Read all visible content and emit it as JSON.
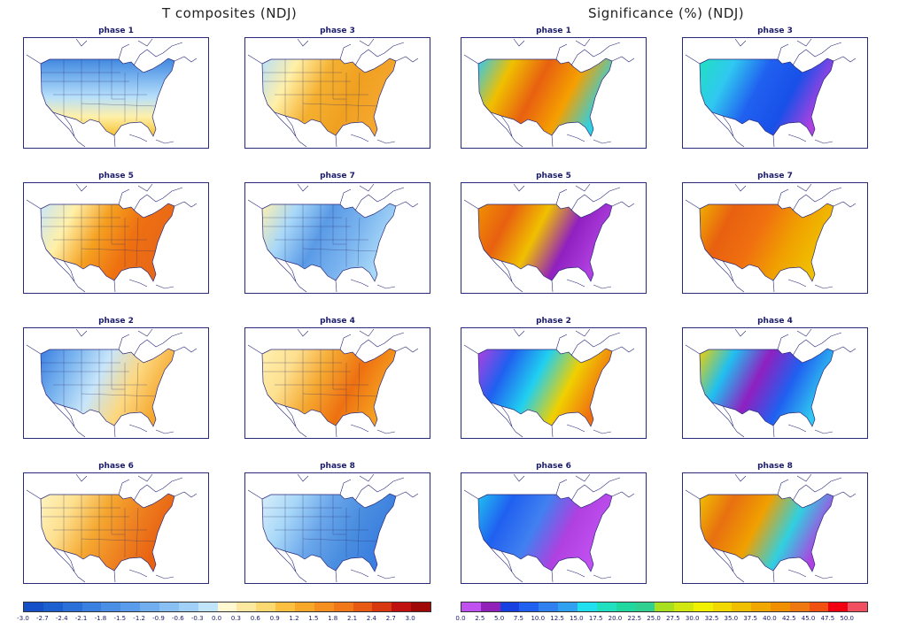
{
  "titles": {
    "left": "T composites (NDJ)",
    "right": "Significance (%) (NDJ)"
  },
  "panels": [
    {
      "group": "temperature",
      "title": "phase 1",
      "dir": "v",
      "colors": [
        "#3f86de",
        "#7ab4ef",
        "#b8e0fa",
        "#fff0a8",
        "#f5c030"
      ]
    },
    {
      "group": "temperature",
      "title": "phase 5",
      "dir": "h",
      "colors": [
        "#c8e6fa",
        "#fff0a8",
        "#f5a020",
        "#ee7010",
        "#e86818"
      ]
    },
    {
      "group": "temperature",
      "title": "phase 2",
      "dir": "h",
      "colors": [
        "#3a7ee0",
        "#7ab4ef",
        "#c8e6fa",
        "#fdd880",
        "#f5a830"
      ]
    },
    {
      "group": "temperature",
      "title": "phase 6",
      "dir": "h",
      "colors": [
        "#fff4c0",
        "#fde090",
        "#f5a830",
        "#ee8020",
        "#e86010"
      ]
    },
    {
      "group": "temperature",
      "title": "phase 3",
      "dir": "h",
      "colors": [
        "#b8e0fa",
        "#fff0a8",
        "#f5b030",
        "#f0a020",
        "#f5a830"
      ]
    },
    {
      "group": "temperature",
      "title": "phase 7",
      "dir": "h",
      "colors": [
        "#fff0b0",
        "#a8d8f8",
        "#5a9ae6",
        "#7ab4ef",
        "#a8d8f8"
      ]
    },
    {
      "group": "temperature",
      "title": "phase 4",
      "dir": "h",
      "colors": [
        "#fff0b0",
        "#fde090",
        "#f5a830",
        "#ee7010",
        "#f5a020"
      ]
    },
    {
      "group": "temperature",
      "title": "phase 8",
      "dir": "h",
      "colors": [
        "#d8eefa",
        "#a8d8f8",
        "#6aa6ea",
        "#4a8ee0",
        "#3a7ee0"
      ]
    },
    {
      "group": "significance",
      "title": "phase 1",
      "dir": "h",
      "colors": [
        "#30c8f0",
        "#f0c000",
        "#e86010",
        "#f5a000",
        "#30d0e0"
      ]
    },
    {
      "group": "significance",
      "title": "phase 5",
      "dir": "h",
      "colors": [
        "#f09000",
        "#e86010",
        "#f0c000",
        "#9020c0",
        "#b040e0"
      ]
    },
    {
      "group": "significance",
      "title": "phase 2",
      "dir": "h",
      "colors": [
        "#b040e0",
        "#2060f0",
        "#20d0f0",
        "#f0d000",
        "#f07010"
      ]
    },
    {
      "group": "significance",
      "title": "phase 6",
      "dir": "h",
      "colors": [
        "#20c0f0",
        "#2060f0",
        "#4080f0",
        "#b040e0",
        "#c050f0"
      ]
    },
    {
      "group": "significance",
      "title": "phase 3",
      "dir": "h",
      "colors": [
        "#20e0c0",
        "#30c8f0",
        "#2060f0",
        "#1850e8",
        "#b040e0"
      ]
    },
    {
      "group": "significance",
      "title": "phase 7",
      "dir": "h",
      "colors": [
        "#f0b000",
        "#e86010",
        "#f07010",
        "#f0a000",
        "#f0c000"
      ]
    },
    {
      "group": "significance",
      "title": "phase 4",
      "dir": "h",
      "colors": [
        "#f0d000",
        "#20c0f0",
        "#9020c0",
        "#2060f0",
        "#30c8f0"
      ]
    },
    {
      "group": "significance",
      "title": "phase 8",
      "dir": "h",
      "colors": [
        "#f0c000",
        "#e87010",
        "#f0a000",
        "#30d0e0",
        "#b040e0"
      ]
    }
  ],
  "colorbars": {
    "temperature": {
      "labels": [
        "-3.0",
        "-2.7",
        "-2.4",
        "-2.1",
        "-1.8",
        "-1.5",
        "-1.2",
        "-0.9",
        "-0.6",
        "-0.3",
        "0.0",
        "0.3",
        "0.6",
        "0.9",
        "1.2",
        "1.5",
        "1.8",
        "2.1",
        "2.4",
        "2.7",
        "3.0"
      ],
      "colors": [
        "#1550c8",
        "#1c60d0",
        "#2a70d8",
        "#3a80e0",
        "#4a8ee6",
        "#5a9cec",
        "#70aef0",
        "#88c0f4",
        "#a0d0f8",
        "#c0e4fa",
        "#fff8d0",
        "#fde8a0",
        "#fcd870",
        "#fbc040",
        "#f8a828",
        "#f59020",
        "#f07818",
        "#e85a14",
        "#d83810",
        "#c01010",
        "#a00808"
      ]
    },
    "significance": {
      "labels": [
        "0.0",
        "2.5",
        "5.0",
        "7.5",
        "10.0",
        "12.5",
        "15.0",
        "17.5",
        "20.0",
        "22.5",
        "25.0",
        "27.5",
        "30.0",
        "32.5",
        "35.0",
        "37.5",
        "40.0",
        "42.5",
        "45.0",
        "47.5",
        "50.0"
      ],
      "colors": [
        "#c050f0",
        "#9020b8",
        "#1840e0",
        "#2060f0",
        "#3080f0",
        "#30a0f0",
        "#20e0f0",
        "#20e0c0",
        "#20d8a0",
        "#30d090",
        "#a8e020",
        "#d0e810",
        "#f0f000",
        "#f0d800",
        "#f0c000",
        "#f0a800",
        "#f09000",
        "#f07810",
        "#f05010",
        "#f00010",
        "#f05060"
      ]
    }
  }
}
